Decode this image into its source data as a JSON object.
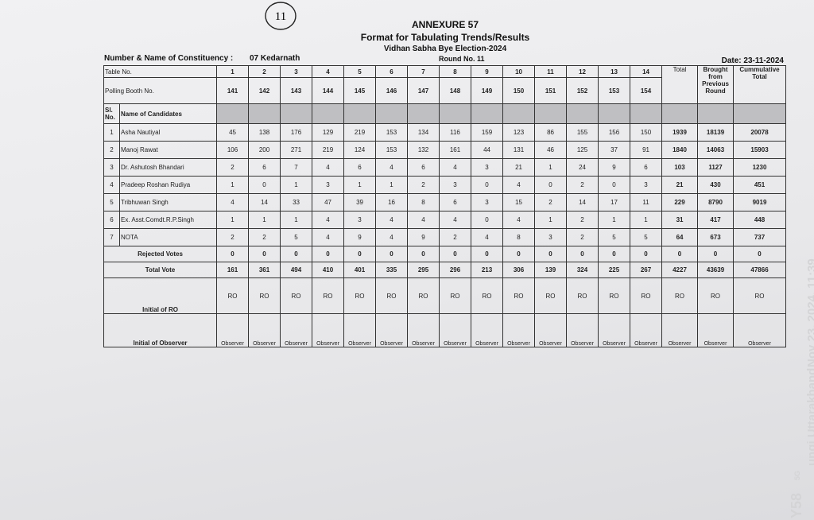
{
  "annotation": "11",
  "header": {
    "title": "ANNEXURE 57",
    "subtitle": "Format for Tabulating Trends/Results",
    "election": "Vidhan Sabha Bye Election-2024",
    "constituency_label": "Number & Name of Constituency :",
    "constituency": "07 Kedarnath",
    "round": "Round No. 11",
    "date": "Date: 23-11-2024"
  },
  "table": {
    "table_no_label": "Table No.",
    "table_numbers": [
      1,
      2,
      3,
      4,
      5,
      6,
      7,
      8,
      9,
      10,
      11,
      12,
      13,
      14
    ],
    "total_label": "Total",
    "brought_label": "Brought from Previous Round",
    "cumulative_label": "Cummulative Total",
    "booth_label": "Polling Booth No.",
    "booths": [
      141,
      142,
      143,
      144,
      145,
      146,
      147,
      148,
      149,
      150,
      151,
      152,
      153,
      154
    ],
    "sl_label": "Sl. No.",
    "name_label": "Name of Candidates",
    "candidates": [
      {
        "sl": 1,
        "name": "Asha Nautiyal",
        "votes": [
          45,
          138,
          176,
          129,
          219,
          153,
          134,
          116,
          159,
          123,
          86,
          155,
          156,
          150
        ],
        "total": 1939,
        "brought": 18139,
        "cumulative": 20078
      },
      {
        "sl": 2,
        "name": "Manoj Rawat",
        "votes": [
          106,
          200,
          271,
          219,
          124,
          153,
          132,
          161,
          44,
          131,
          46,
          125,
          37,
          91
        ],
        "total": 1840,
        "brought": 14063,
        "cumulative": 15903
      },
      {
        "sl": 3,
        "name": "Dr. Ashutosh Bhandari",
        "votes": [
          2,
          6,
          7,
          4,
          6,
          4,
          6,
          4,
          3,
          21,
          1,
          24,
          9,
          6
        ],
        "total": 103,
        "brought": 1127,
        "cumulative": 1230
      },
      {
        "sl": 4,
        "name": "Pradeep Roshan Rudiya",
        "votes": [
          1,
          0,
          1,
          3,
          1,
          1,
          2,
          3,
          0,
          4,
          0,
          2,
          0,
          3
        ],
        "total": 21,
        "brought": 430,
        "cumulative": 451
      },
      {
        "sl": 5,
        "name": "Tribhuwan Singh",
        "votes": [
          4,
          14,
          33,
          47,
          39,
          16,
          8,
          6,
          3,
          15,
          2,
          14,
          17,
          11
        ],
        "total": 229,
        "brought": 8790,
        "cumulative": 9019
      },
      {
        "sl": 6,
        "name": "Ex. Asst.Comdt.R.P.Singh",
        "votes": [
          1,
          1,
          1,
          4,
          3,
          4,
          4,
          4,
          0,
          4,
          1,
          2,
          1,
          1
        ],
        "total": 31,
        "brought": 417,
        "cumulative": 448
      },
      {
        "sl": 7,
        "name": "NOTA",
        "votes": [
          2,
          2,
          5,
          4,
          9,
          4,
          9,
          2,
          4,
          8,
          3,
          2,
          5,
          5
        ],
        "total": 64,
        "brought": 673,
        "cumulative": 737
      }
    ],
    "rejected": {
      "label": "Rejected Votes",
      "votes": [
        0,
        0,
        0,
        0,
        0,
        0,
        0,
        0,
        0,
        0,
        0,
        0,
        0,
        0
      ],
      "total": 0,
      "brought": 0,
      "cumulative": 0
    },
    "total_vote": {
      "label": "Total Vote",
      "votes": [
        161,
        361,
        494,
        410,
        401,
        335,
        295,
        296,
        213,
        306,
        139,
        324,
        225,
        267
      ],
      "total": 4227,
      "brought": 43639,
      "cumulative": 47866
    },
    "ro": {
      "label": "Initial of RO",
      "marks": [
        "RO",
        "RO",
        "RO",
        "RO",
        "RO",
        "RO",
        "RO",
        "RO",
        "RO",
        "RO",
        "RO",
        "RO",
        "RO",
        "RO",
        "RO",
        "RO",
        "RO"
      ]
    },
    "observer": {
      "label": "Initial of Observer",
      "marks": [
        "Observer",
        "Observer",
        "Observer",
        "Observer",
        "Observer",
        "Observer",
        "Observer",
        "Observer",
        "Observer",
        "Observer",
        "Observer",
        "Observer",
        "Observer",
        "Observer",
        "Observer",
        "Observer",
        "Observer"
      ]
    }
  },
  "photo_stamp": {
    "device": "Y58",
    "network": "5G",
    "location": "ungi Uttarakhand",
    "datetime": "Nov 23, 2024, 11:39"
  }
}
